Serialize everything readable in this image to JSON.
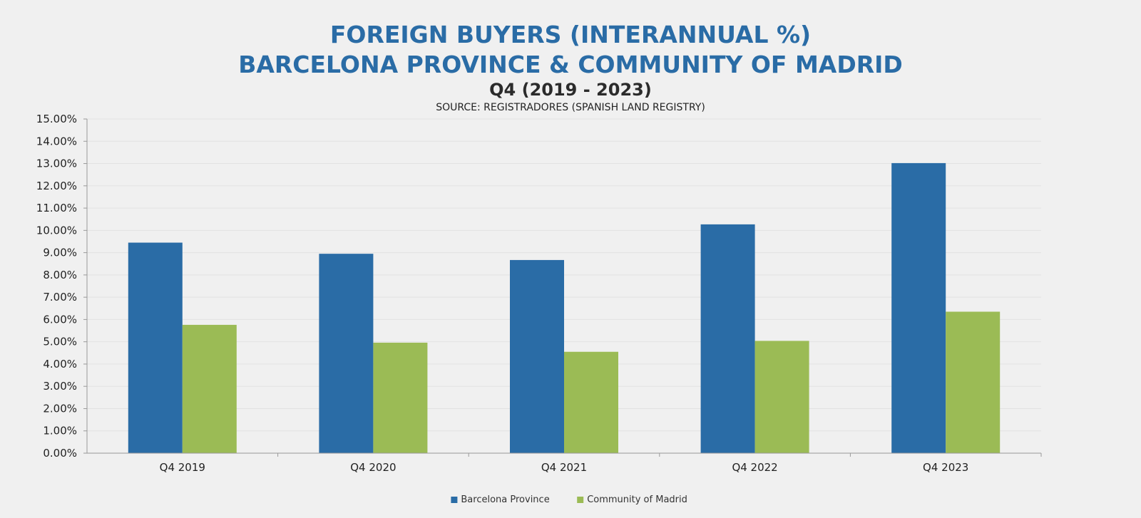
{
  "chart_data": {
    "type": "bar",
    "title": [
      "FOREIGN BUYERS (INTERANNUAL %)",
      "BARCELONA PROVINCE & COMMUNITY OF MADRID"
    ],
    "subtitle": "Q4 (2019 - 2023)",
    "source": "SOURCE: REGISTRADORES (SPANISH LAND REGISTRY)",
    "categories": [
      "Q4 2019",
      "Q4 2020",
      "Q4 2021",
      "Q4 2022",
      "Q4 2023"
    ],
    "series": [
      {
        "name": "Barcelona Province",
        "color": "#2a6ca6",
        "values": [
          9.45,
          8.95,
          8.67,
          10.27,
          13.02
        ]
      },
      {
        "name": "Community of Madrid",
        "color": "#9bbb55",
        "values": [
          5.76,
          4.96,
          4.55,
          5.04,
          6.35
        ]
      }
    ],
    "ylim": [
      0,
      15
    ],
    "ytick_step": 1,
    "ytick_format": "percent_2dp",
    "grid": true,
    "legend_position": "bottom-center",
    "xlabel": "",
    "ylabel": ""
  }
}
